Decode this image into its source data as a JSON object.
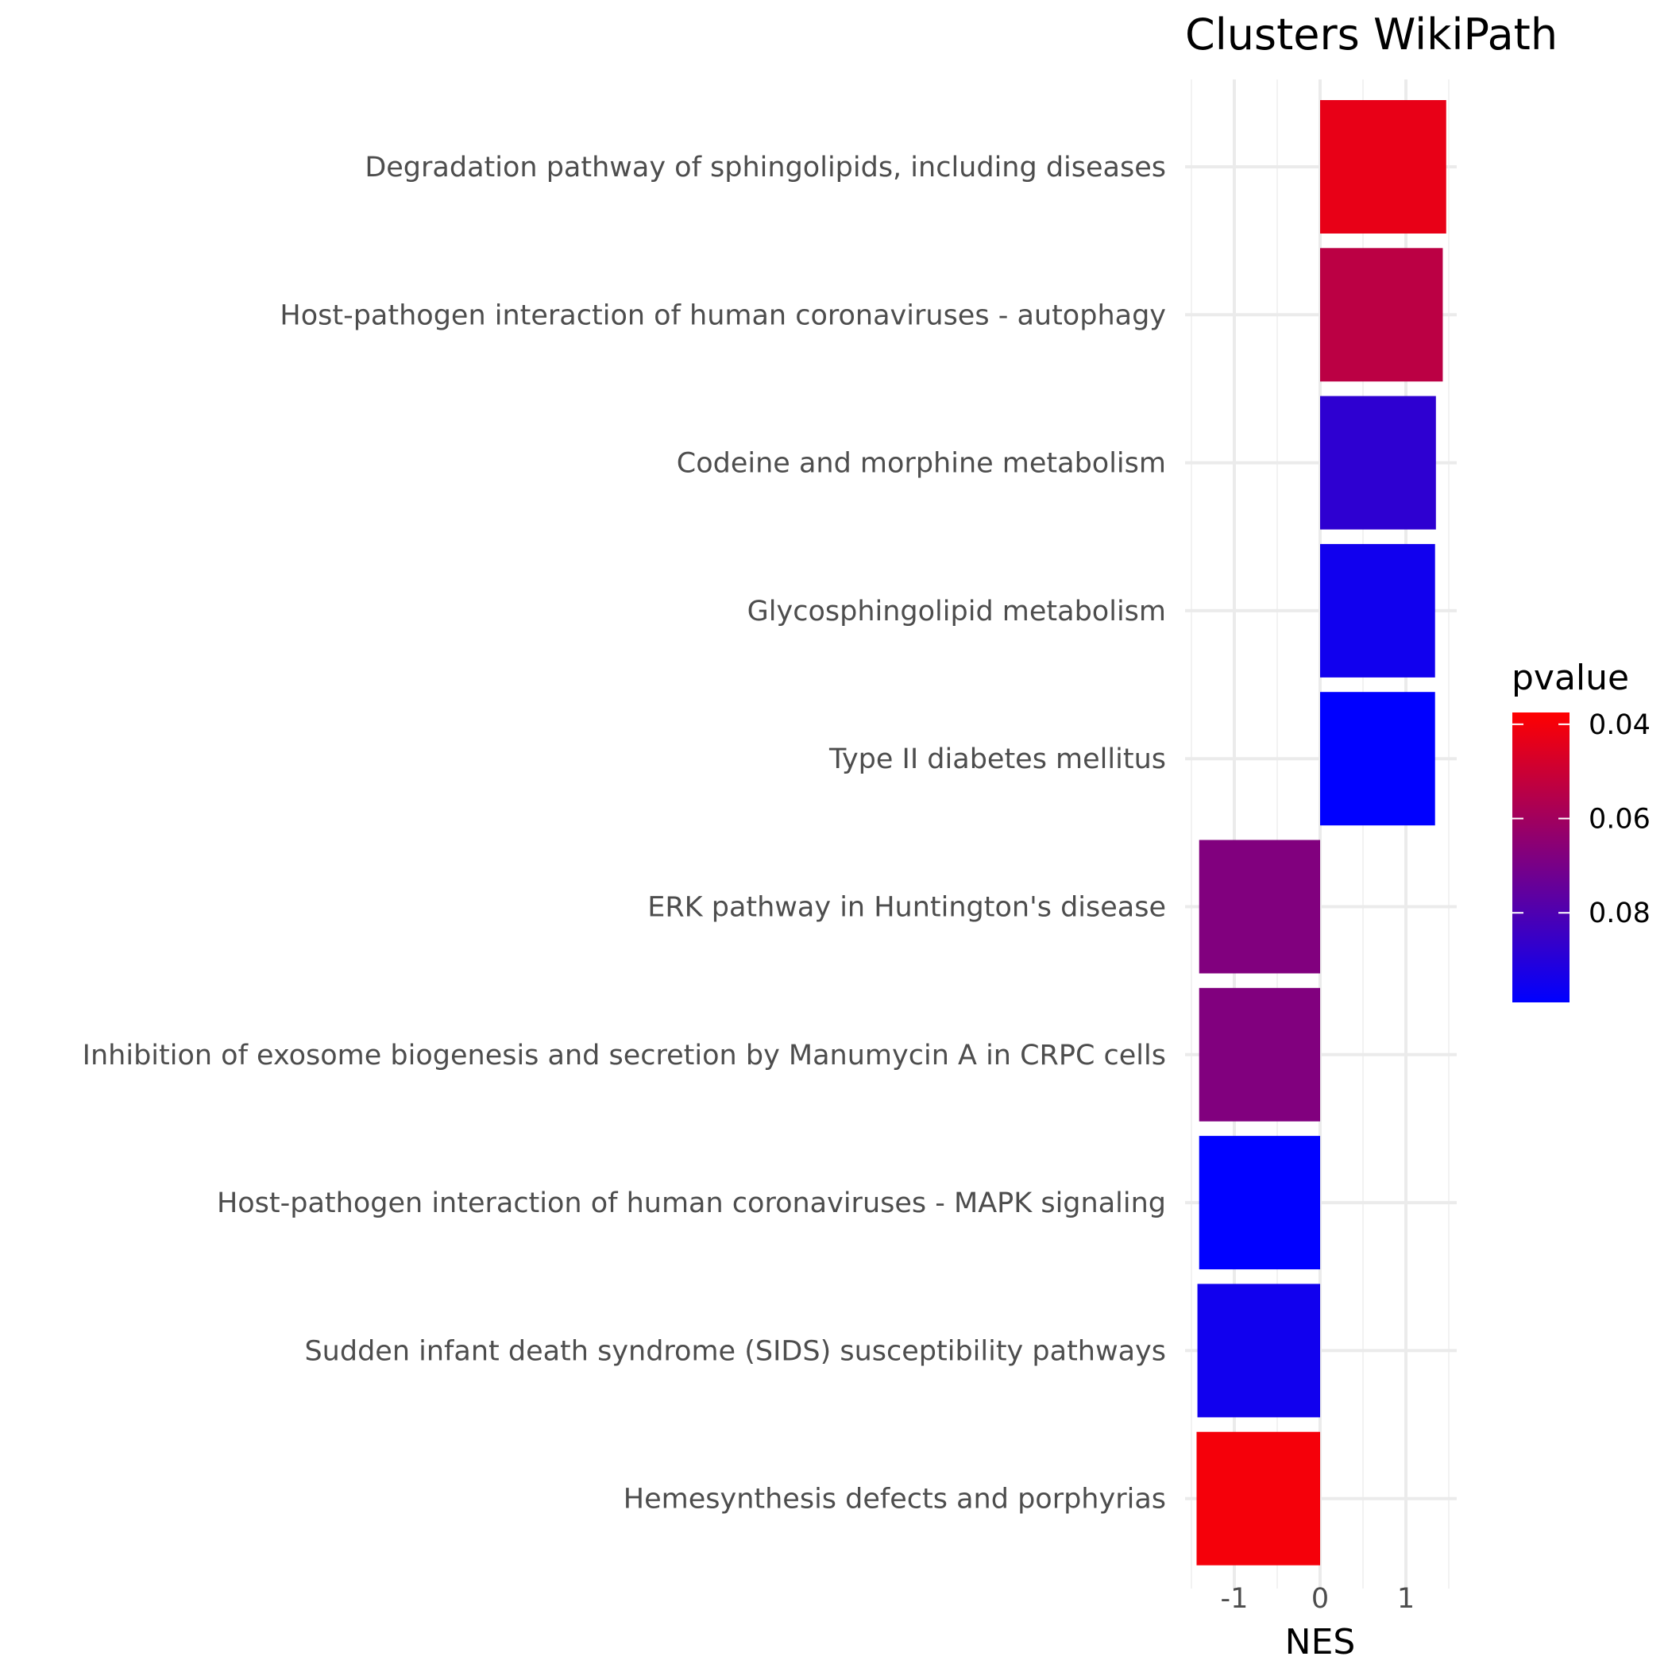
{
  "chart_data": {
    "type": "bar",
    "orientation": "horizontal",
    "title": "Clusters  WikiPath",
    "xlabel": "NES",
    "ylabel": "",
    "xlim": [
      -1.52,
      1.62
    ],
    "x_ticks": [
      -1,
      0,
      1
    ],
    "x_tick_labels": [
      "-1",
      "0",
      "1"
    ],
    "grid": true,
    "categories": [
      "Degradation pathway of sphingolipids, including diseases",
      "Host-pathogen interaction of human coronaviruses - autophagy",
      "Codeine and morphine metabolism",
      "Glycosphingolipid metabolism",
      "Type II diabetes mellitus",
      "ERK pathway in Huntington's disease",
      "Inhibition of exosome biogenesis and secretion by Manumycin A in CRPC cells",
      "Host-pathogen interaction of human coronaviruses - MAPK signaling",
      "Sudden infant death syndrome (SIDS) susceptibility pathways",
      "Hemesynthesis defects and porphyrias"
    ],
    "values": [
      1.47,
      1.43,
      1.35,
      1.34,
      1.34,
      -1.41,
      -1.41,
      -1.41,
      -1.43,
      -1.44
    ],
    "pvalue": [
      0.043,
      0.054,
      0.088,
      0.095,
      0.101,
      0.068,
      0.068,
      0.099,
      0.095,
      0.04
    ],
    "legend": {
      "title": "pvalue",
      "position": "right",
      "ticks": [
        0.04,
        0.06,
        0.08
      ],
      "tick_labels": [
        "0.04",
        "0.06",
        "0.08"
      ],
      "range": [
        0.0375,
        0.099
      ],
      "low_color": "#ff0000",
      "high_color": "#0000ff",
      "reversed": true
    }
  }
}
